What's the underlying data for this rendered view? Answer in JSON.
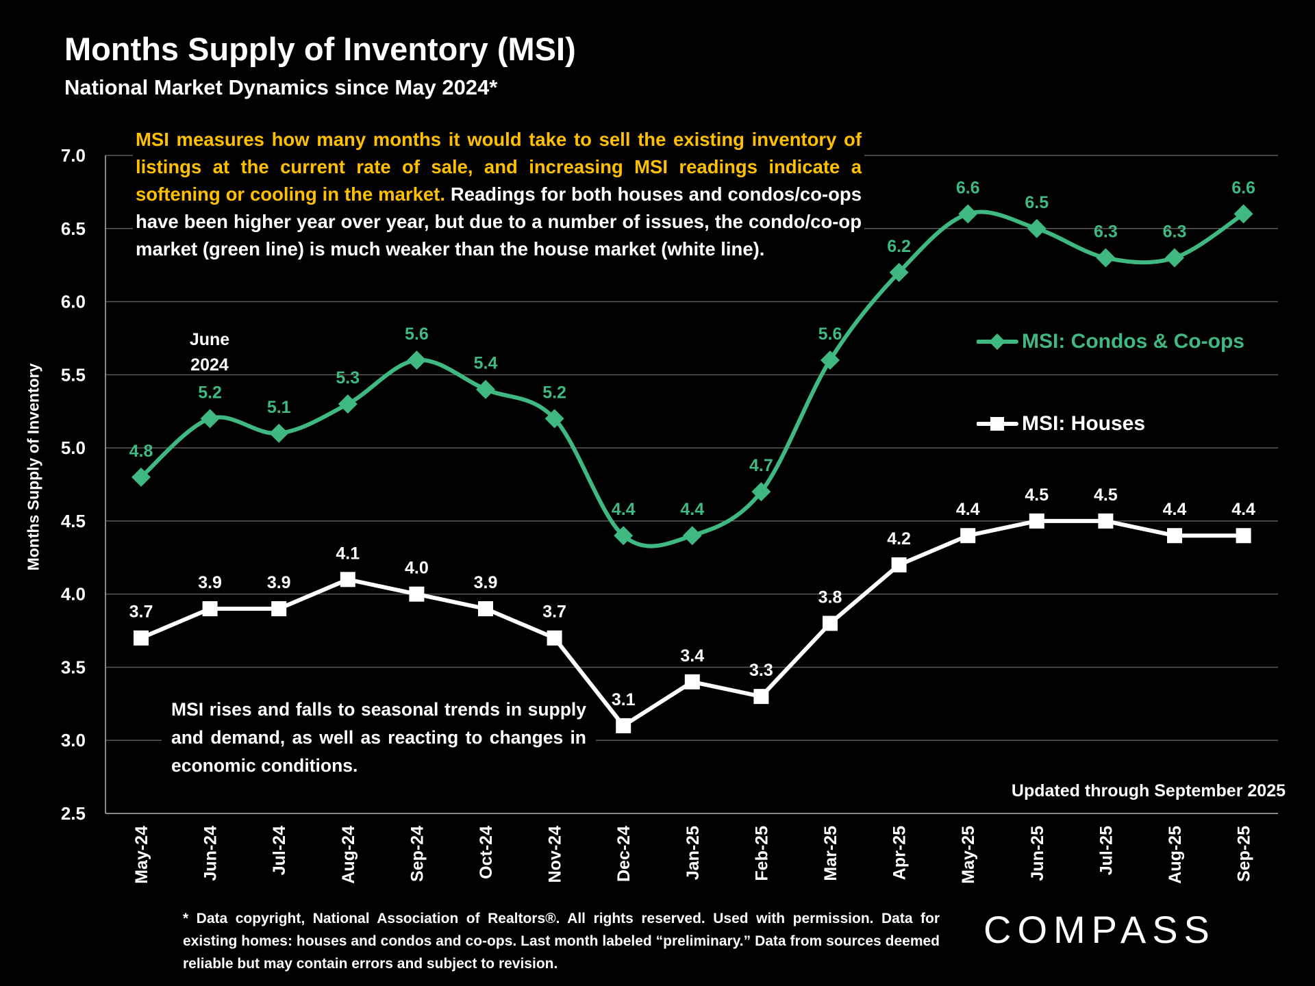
{
  "title": "Months Supply of Inventory (MSI)",
  "subtitle": "National Market Dynamics since May 2024*",
  "annotation_top": {
    "highlight": "MSI measures how many months it would take to sell the existing inventory of listings at the current rate of sale, and increasing MSI readings indicate a softening or cooling in the market.",
    "rest": " Readings for both houses and condos/co-ops have been higher year over year, but due to a number of issues, the condo/co-op market (green line) is much weaker than the house market (white line)."
  },
  "annotation_bottom": "MSI rises and falls to seasonal trends in supply and demand, as well as reacting to changes in economic conditions.",
  "june_label": {
    "line1": "June",
    "line2": "2024"
  },
  "updated": "Updated through September 2025",
  "footnote": "* Data copyright, National Association of Realtors®. All rights reserved. Used with permission. Data for existing homes: houses and condos and co-ops. Last month labeled “preliminary.” Data from sources deemed reliable but may contain errors and subject to revision.",
  "logo": "COMPASS",
  "colors": {
    "condos": "#3FB882",
    "houses": "#FFFFFF",
    "highlight": "#FFC000"
  },
  "chart_data": {
    "type": "line",
    "title": "Months Supply of Inventory (MSI)",
    "xlabel": "",
    "ylabel": "Months Supply of Inventory",
    "ylim": [
      2.5,
      7.0
    ],
    "yticks": [
      "2.5",
      "3.0",
      "3.5",
      "4.0",
      "4.5",
      "5.0",
      "5.5",
      "6.0",
      "6.5",
      "7.0"
    ],
    "grid": true,
    "legend_position": "right",
    "categories": [
      "May-24",
      "Jun-24",
      "Jul-24",
      "Aug-24",
      "Sep-24",
      "Oct-24",
      "Nov-24",
      "Dec-24",
      "Jan-25",
      "Feb-25",
      "Mar-25",
      "Apr-25",
      "May-25",
      "Jun-25",
      "Jul-25",
      "Aug-25",
      "Sep-25"
    ],
    "series": [
      {
        "name": "MSI:  Condos & Co-ops",
        "marker": "diamond",
        "smooth": true,
        "values": [
          4.8,
          5.2,
          5.1,
          5.3,
          5.6,
          5.4,
          5.2,
          4.4,
          4.4,
          4.7,
          5.6,
          6.2,
          6.6,
          6.5,
          6.3,
          6.3,
          6.6
        ]
      },
      {
        "name": "MSI:  Houses",
        "marker": "square",
        "smooth": false,
        "values": [
          3.7,
          3.9,
          3.9,
          4.1,
          4.0,
          3.9,
          3.7,
          3.1,
          3.4,
          3.3,
          3.8,
          4.2,
          4.4,
          4.5,
          4.5,
          4.4,
          4.4
        ]
      }
    ]
  }
}
